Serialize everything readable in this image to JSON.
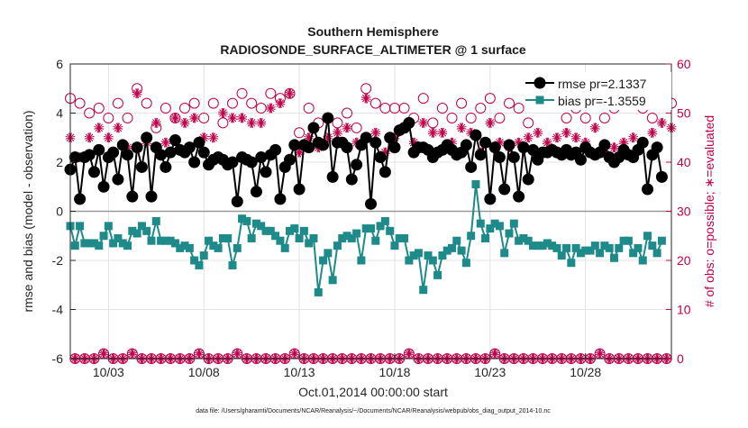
{
  "chart_data": {
    "type": "line",
    "title": "Southern Hemisphere",
    "subtitle": "RADIOSONDE_SURFACE_ALTIMETER @ 1 surface",
    "xlabel": "Oct.01,2014 00:00:00 start",
    "ylabel": "rmse and bias (model - observation)",
    "ylabel_right": "# of obs: o=possible; ∗=evaluated",
    "footnote": "data file: /Users/gharamti/Documents/NCAR/Reanalysis/~/Documents/NCAR/Reanalysis/webpub/obs_diag_output_2014-10.nc",
    "x_ticks": [
      3,
      8,
      13,
      18,
      23,
      28
    ],
    "x_tick_labels": [
      "10/03",
      "10/08",
      "10/13",
      "10/18",
      "10/23",
      "10/28"
    ],
    "xlim": [
      1,
      32.5
    ],
    "ylim": [
      -6,
      6
    ],
    "y_ticks": [
      -6,
      -4,
      -2,
      0,
      2,
      4,
      6
    ],
    "y_tick_labels": [
      "-6",
      "-4",
      "-2",
      "0",
      "2",
      "4",
      "6"
    ],
    "ylim_right": [
      0,
      60
    ],
    "y_ticks_right": [
      0,
      10,
      20,
      30,
      40,
      50,
      60
    ],
    "y_tick_labels_right": [
      "0",
      "10",
      "20",
      "30",
      "40",
      "50",
      "60"
    ],
    "grid": true,
    "legend_position": "top-right",
    "colors": {
      "rmse": "#000000",
      "bias": "#1f8a8a",
      "counts": "#c0004a",
      "zero_line": "#999999",
      "grid": "#dcdcdc"
    },
    "series": [
      {
        "name": "rmse pr=2.1337",
        "axis": "left",
        "marker": "filled-circle",
        "values": [
          1.7,
          2.2,
          0.5,
          2.2,
          2.3,
          1.6,
          2.5,
          1.0,
          2.2,
          2.4,
          1.3,
          2.7,
          2.3,
          0.6,
          2.6,
          1.8,
          3.0,
          0.6,
          2.6,
          2.3,
          1.8,
          2.4,
          2.9,
          2.5,
          2.4,
          2.6,
          2.0,
          2.8,
          2.4,
          1.9,
          2.1,
          2.2,
          2.1,
          1.9,
          2.0,
          0.4,
          2.2,
          2.1,
          2.0,
          0.8,
          2.2,
          1.6,
          2.3,
          2.5,
          0.5,
          1.8,
          2.1,
          2.7,
          0.9,
          2.7,
          2.6,
          3.4,
          2.8,
          2.7,
          3.8,
          1.4,
          2.8,
          2.8,
          2.6,
          1.3,
          1.9,
          2.7,
          3.0,
          0.3,
          2.8,
          2.2,
          1.6,
          3.0,
          2.6,
          3.3,
          3.4,
          3.6,
          2.4,
          2.6,
          2.6,
          2.5,
          2.2,
          2.4,
          2.5,
          2.7,
          2.5,
          2.3,
          2.4,
          2.7,
          1.8,
          3.1,
          2.3,
          2.8,
          0.5,
          2.6,
          2.2,
          0.9,
          2.7,
          2.2,
          0.6,
          2.6,
          1.3,
          2.5,
          2.1,
          2.4,
          2.4,
          2.5,
          2.4,
          2.3,
          2.5,
          2.3,
          2.4,
          2.1,
          2.6,
          2.4,
          2.3,
          2.4,
          2.7,
          2.2,
          2.0,
          2.2,
          2.5,
          2.3,
          2.2,
          2.5,
          2.8,
          0.9,
          2.3,
          2.6,
          1.4
        ]
      },
      {
        "name": "bias pr=-1.3559",
        "axis": "left",
        "marker": "filled-square",
        "values": [
          -0.6,
          -1.4,
          -0.6,
          -1.3,
          -1.3,
          -1.3,
          -1.4,
          -1.0,
          -0.6,
          -1.3,
          -1.1,
          -1.3,
          -1.4,
          -0.8,
          -0.9,
          -0.6,
          -0.8,
          -1.2,
          -0.4,
          -1.2,
          -1.2,
          -1.2,
          -1.3,
          -1.5,
          -1.4,
          -1.5,
          -2.0,
          -2.2,
          -1.8,
          -1.2,
          -1.4,
          -1.5,
          -1.1,
          -1.1,
          -2.2,
          -1.5,
          -0.3,
          -0.4,
          -1.1,
          -0.5,
          -0.6,
          -0.8,
          -0.8,
          -1.0,
          -1.2,
          -1.5,
          -0.8,
          -0.7,
          -1.1,
          -0.8,
          -1.3,
          -1.1,
          -3.3,
          -2.0,
          -1.7,
          -2.8,
          -1.4,
          -1.1,
          -1.0,
          -1.1,
          -0.9,
          -2.0,
          -0.7,
          -0.7,
          -1.2,
          -0.6,
          -0.4,
          -0.8,
          -1.4,
          -1.1,
          -1.1,
          -2.0,
          -1.8,
          -1.7,
          -3.2,
          -1.8,
          -2.0,
          -2.6,
          -1.8,
          -1.6,
          -1.5,
          -1.2,
          -1.6,
          -2.1,
          -1.0,
          1.1,
          -0.5,
          -1.1,
          -0.7,
          -0.5,
          -0.6,
          -1.7,
          -0.9,
          -0.5,
          -1.2,
          -1.1,
          -1.2,
          -1.4,
          -1.4,
          -1.4,
          -1.3,
          -1.4,
          -1.5,
          -1.8,
          -1.5,
          -2.1,
          -1.5,
          -1.7,
          -1.6,
          -1.6,
          -1.4,
          -1.7,
          -1.4,
          -1.5,
          -1.9,
          -1.5,
          -1.2,
          -1.2,
          -1.7,
          -1.5,
          -2.0,
          -1.0,
          -1.4,
          -1.7,
          -1.2
        ]
      },
      {
        "name": "possible",
        "axis": "right",
        "marker": "open-circle",
        "values": [
          53,
          0,
          52,
          0,
          50,
          0,
          51,
          1,
          49,
          0,
          52,
          0,
          49,
          1,
          55,
          0,
          52,
          0,
          47,
          0,
          51,
          0,
          49,
          0,
          51,
          0,
          52,
          1,
          49,
          0,
          52,
          0,
          48,
          0,
          52,
          1,
          54,
          0,
          52,
          0,
          51,
          0,
          54,
          0,
          53,
          0,
          54,
          1,
          46,
          0,
          51,
          0,
          48,
          0,
          49,
          0,
          48,
          0,
          50,
          0,
          47,
          0,
          55,
          0,
          52,
          0,
          51,
          0,
          51,
          0,
          51,
          1,
          49,
          0,
          53,
          0,
          48,
          0,
          51,
          0,
          49,
          0,
          52,
          0,
          49,
          0,
          51,
          0,
          53,
          1,
          49,
          0,
          52,
          0,
          51,
          0,
          48,
          0,
          52,
          0,
          52,
          0,
          53,
          0,
          49,
          0,
          51,
          0,
          49,
          0,
          52,
          1,
          49,
          0,
          51,
          0,
          52,
          0,
          53,
          0,
          51,
          0,
          49,
          0,
          54,
          0,
          52
        ]
      },
      {
        "name": "evaluated",
        "axis": "right",
        "marker": "asterisk",
        "values": [
          45,
          0,
          41,
          0,
          45,
          0,
          47,
          1,
          45,
          0,
          47,
          0,
          43,
          1,
          54,
          0,
          44,
          0,
          48,
          0,
          44,
          0,
          49,
          0,
          48,
          0,
          49,
          1,
          45,
          0,
          45,
          0,
          50,
          0,
          49,
          1,
          49,
          0,
          48,
          0,
          48,
          0,
          51,
          0,
          52,
          0,
          54,
          1,
          42,
          0,
          45,
          0,
          43,
          0,
          45,
          0,
          46,
          0,
          47,
          0,
          44,
          0,
          53,
          0,
          46,
          0,
          42,
          0,
          45,
          0,
          47,
          1,
          44,
          0,
          48,
          0,
          46,
          0,
          46,
          0,
          44,
          0,
          47,
          0,
          46,
          0,
          42,
          0,
          48,
          1,
          44,
          0,
          43,
          0,
          44,
          0,
          45,
          0,
          46,
          0,
          44,
          0,
          45,
          0,
          46,
          0,
          45,
          0,
          44,
          0,
          47,
          1,
          42,
          0,
          43,
          0,
          44,
          0,
          45,
          0,
          44,
          0,
          46,
          0,
          48,
          0,
          47
        ]
      }
    ]
  }
}
